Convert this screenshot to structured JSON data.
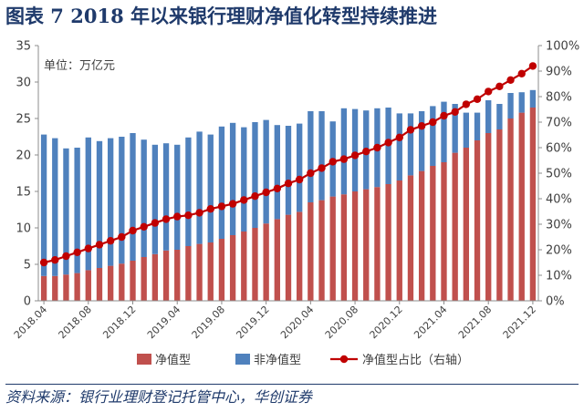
{
  "header": {
    "title": "图表 7 2018 年以来银行理财净值化转型持续推进"
  },
  "footer": {
    "source": "资料来源：银行业理财登记托管中心，华创证券"
  },
  "colors": {
    "net_value": "#c0504d",
    "non_net_value": "#4f81bd",
    "ratio_line": "#c00000",
    "title": "#1f3a6b"
  },
  "chart_data": {
    "type": "bar",
    "stacked": true,
    "unit_note": "单位：万亿元",
    "categories": [
      "2018.04",
      "2018.05",
      "2018.06",
      "2018.07",
      "2018.08",
      "2018.09",
      "2018.10",
      "2018.11",
      "2018.12",
      "2019.01",
      "2019.02",
      "2019.03",
      "2019.04",
      "2019.05",
      "2019.06",
      "2019.07",
      "2019.08",
      "2019.09",
      "2019.10",
      "2019.11",
      "2019.12",
      "2020.01",
      "2020.02",
      "2020.03",
      "2020.04",
      "2020.05",
      "2020.06",
      "2020.07",
      "2020.08",
      "2020.09",
      "2020.10",
      "2020.11",
      "2020.12",
      "2021.01",
      "2021.02",
      "2021.03",
      "2021.04",
      "2021.05",
      "2021.06",
      "2021.07",
      "2021.08",
      "2021.09",
      "2021.10",
      "2021.11",
      "2021.12"
    ],
    "x_tick_labels": [
      "2018.04",
      "2018.08",
      "2018.12",
      "2019.04",
      "2019.08",
      "2019.12",
      "2020.04",
      "2020.08",
      "2020.12",
      "2021.04",
      "2021.08",
      "2021.12"
    ],
    "x_tick_every": 4,
    "series": [
      {
        "name": "净值型",
        "values": [
          3.4,
          3.4,
          3.6,
          3.8,
          4.2,
          4.5,
          4.8,
          5.1,
          5.5,
          6.0,
          6.4,
          6.9,
          7.0,
          7.5,
          7.8,
          8.0,
          8.5,
          9.0,
          9.5,
          10.0,
          10.6,
          11.2,
          11.8,
          12.2,
          13.5,
          13.8,
          14.3,
          14.6,
          15.0,
          15.3,
          15.6,
          16.0,
          16.5,
          17.2,
          17.8,
          18.5,
          19.0,
          20.3,
          21.0,
          22.0,
          23.0,
          23.5,
          25.0,
          25.8,
          26.5
        ]
      },
      {
        "name": "非净值型",
        "values": [
          19.4,
          18.9,
          17.3,
          17.2,
          18.2,
          17.4,
          17.5,
          17.4,
          17.5,
          16.1,
          15.0,
          14.7,
          14.4,
          14.9,
          15.4,
          14.8,
          15.4,
          15.4,
          14.3,
          14.5,
          14.2,
          12.9,
          12.2,
          12.1,
          12.5,
          12.2,
          10.3,
          11.8,
          11.3,
          10.8,
          10.8,
          10.5,
          9.2,
          8.5,
          8.2,
          8.2,
          8.3,
          6.7,
          4.8,
          3.8,
          4.5,
          3.5,
          3.5,
          2.8,
          2.4
        ]
      },
      {
        "name": "净值型占比（右轴）",
        "axis": "right",
        "values": [
          15,
          16,
          17.5,
          19,
          20.5,
          22,
          23.5,
          25,
          27.5,
          29,
          30.5,
          32,
          33,
          33.5,
          34.5,
          36,
          37,
          38,
          39.5,
          41,
          42.5,
          44,
          46,
          47.5,
          50,
          52,
          54.5,
          55.5,
          57,
          58.5,
          60,
          62,
          64,
          67,
          68.5,
          70,
          72.5,
          74,
          77,
          79,
          82,
          84,
          86.5,
          89,
          92
        ]
      }
    ],
    "y_left": {
      "min": 0,
      "max": 35,
      "ticks": [
        0,
        5,
        10,
        15,
        20,
        25,
        30,
        35
      ]
    },
    "y_right": {
      "min": 0,
      "max": 100,
      "ticks": [
        "0%",
        "10%",
        "20%",
        "30%",
        "40%",
        "50%",
        "60%",
        "70%",
        "80%",
        "90%",
        "100%"
      ]
    },
    "legend": {
      "placement": "bottom",
      "items": [
        "净值型",
        "非净值型",
        "净值型占比（右轴）"
      ]
    },
    "grid": false
  }
}
